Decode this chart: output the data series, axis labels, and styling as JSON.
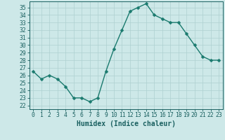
{
  "x": [
    0,
    1,
    2,
    3,
    4,
    5,
    6,
    7,
    8,
    9,
    10,
    11,
    12,
    13,
    14,
    15,
    16,
    17,
    18,
    19,
    20,
    21,
    22,
    23
  ],
  "y": [
    26.5,
    25.5,
    26.0,
    25.5,
    24.5,
    23.0,
    23.0,
    22.5,
    23.0,
    26.5,
    29.5,
    32.0,
    34.5,
    35.0,
    35.5,
    34.0,
    33.5,
    33.0,
    33.0,
    31.5,
    30.0,
    28.5,
    28.0,
    28.0
  ],
  "line_color": "#1a7a6e",
  "bg_color": "#cde8e8",
  "grid_color": "#aed0d0",
  "xlabel": "Humidex (Indice chaleur)",
  "ylabel_ticks": [
    22,
    23,
    24,
    25,
    26,
    27,
    28,
    29,
    30,
    31,
    32,
    33,
    34,
    35
  ],
  "ylim": [
    21.5,
    35.8
  ],
  "xlim": [
    -0.5,
    23.5
  ],
  "xticks": [
    0,
    1,
    2,
    3,
    4,
    5,
    6,
    7,
    8,
    9,
    10,
    11,
    12,
    13,
    14,
    15,
    16,
    17,
    18,
    19,
    20,
    21,
    22,
    23
  ],
  "marker_size": 2.5,
  "line_width": 1.0,
  "font_color": "#1a6060",
  "tick_fontsize": 5.8,
  "label_fontsize": 7.0
}
